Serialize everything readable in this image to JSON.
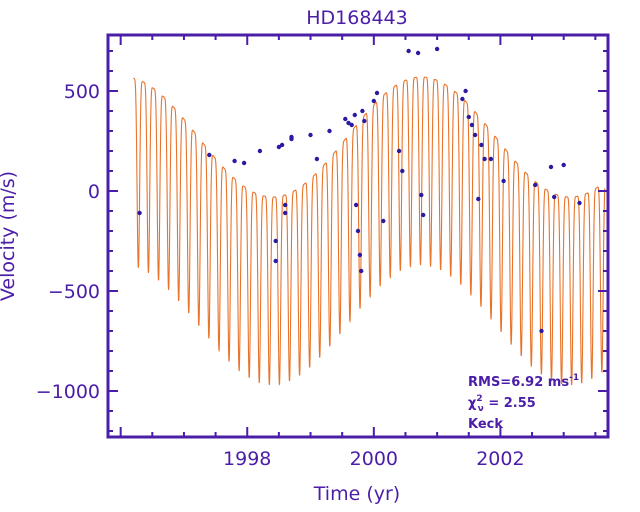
{
  "chart_data": {
    "type": "line",
    "title": "HD168443",
    "xlabel": "Time   (yr)",
    "ylabel": "Velocity  (m/s)",
    "xlim": [
      1995.8,
      2003.7
    ],
    "ylim": [
      -1230,
      780
    ],
    "x_ticks": [
      1998,
      2000,
      2002
    ],
    "y_ticks": [
      500,
      0,
      -500,
      -1000
    ],
    "colors": {
      "axes": "#4b1ea8",
      "model": "#e8732a",
      "points": "#2a1aa0"
    },
    "model": {
      "name": "",
      "inner_period_yr": 0.1592,
      "inner_amplitude": 470,
      "inner_offset": -260,
      "outer_period_yr": 4.7,
      "outer_center": -200,
      "outer_amplitude": 300,
      "outer_peak_x": 2000.75,
      "peak_shape": 3.2,
      "x_start": 1996.2,
      "x_end": 2003.65
    },
    "points": [
      [
        1996.3,
        -110
      ],
      [
        1997.4,
        180
      ],
      [
        1997.8,
        150
      ],
      [
        1997.95,
        140
      ],
      [
        1998.2,
        200
      ],
      [
        1998.45,
        -250
      ],
      [
        1998.45,
        -350
      ],
      [
        1998.5,
        220
      ],
      [
        1998.55,
        230
      ],
      [
        1998.6,
        -70
      ],
      [
        1998.6,
        -110
      ],
      [
        1998.7,
        260
      ],
      [
        1998.7,
        270
      ],
      [
        1999.0,
        280
      ],
      [
        1999.1,
        160
      ],
      [
        1999.3,
        300
      ],
      [
        1999.55,
        360
      ],
      [
        1999.6,
        340
      ],
      [
        1999.65,
        330
      ],
      [
        1999.7,
        380
      ],
      [
        1999.72,
        -70
      ],
      [
        1999.75,
        -200
      ],
      [
        1999.78,
        -320
      ],
      [
        1999.8,
        -400
      ],
      [
        1999.82,
        400
      ],
      [
        1999.85,
        350
      ],
      [
        2000.0,
        450
      ],
      [
        2000.05,
        490
      ],
      [
        2000.15,
        -150
      ],
      [
        2000.4,
        200
      ],
      [
        2000.45,
        100
      ],
      [
        2000.55,
        700
      ],
      [
        2000.7,
        690
      ],
      [
        2000.75,
        -20
      ],
      [
        2000.78,
        -120
      ],
      [
        2001.0,
        710
      ],
      [
        2001.4,
        460
      ],
      [
        2001.45,
        500
      ],
      [
        2001.5,
        370
      ],
      [
        2001.55,
        330
      ],
      [
        2001.6,
        280
      ],
      [
        2001.65,
        -40
      ],
      [
        2001.7,
        230
      ],
      [
        2001.75,
        160
      ],
      [
        2001.85,
        160
      ],
      [
        2002.05,
        50
      ],
      [
        2002.55,
        30
      ],
      [
        2002.65,
        -700
      ],
      [
        2002.8,
        120
      ],
      [
        2002.85,
        -30
      ],
      [
        2003.0,
        130
      ],
      [
        2003.25,
        -60
      ]
    ],
    "annotations": {
      "rms": "RMS=6.92 ms",
      "rms_exp": "-1",
      "chi": "χ",
      "chi_sup": "2",
      "chi_sub": "ν",
      "chi_value": " = 2.55",
      "source": "Keck"
    },
    "grid": false,
    "legend": "none"
  }
}
